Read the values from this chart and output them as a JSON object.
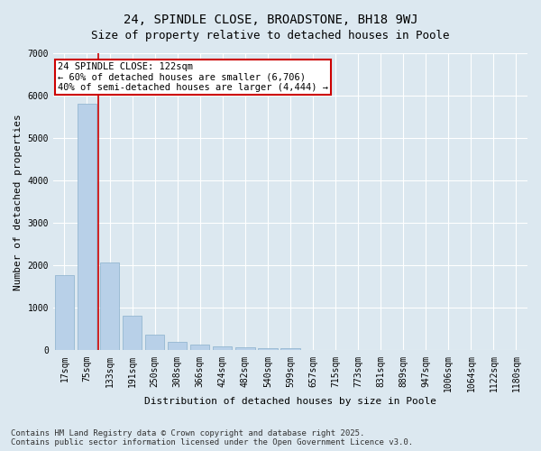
{
  "title": "24, SPINDLE CLOSE, BROADSTONE, BH18 9WJ",
  "subtitle": "Size of property relative to detached houses in Poole",
  "xlabel": "Distribution of detached houses by size in Poole",
  "ylabel": "Number of detached properties",
  "categories": [
    "17sqm",
    "75sqm",
    "133sqm",
    "191sqm",
    "250sqm",
    "308sqm",
    "366sqm",
    "424sqm",
    "482sqm",
    "540sqm",
    "599sqm",
    "657sqm",
    "715sqm",
    "773sqm",
    "831sqm",
    "889sqm",
    "947sqm",
    "1006sqm",
    "1064sqm",
    "1122sqm",
    "1180sqm"
  ],
  "values": [
    1780,
    5820,
    2080,
    820,
    370,
    210,
    130,
    90,
    70,
    55,
    45,
    0,
    0,
    0,
    0,
    0,
    0,
    0,
    0,
    0,
    0
  ],
  "bar_color": "#b8d0e8",
  "bar_edge_color": "#8ab0cc",
  "vline_color": "#cc0000",
  "vline_x": 1.5,
  "annotation_text": "24 SPINDLE CLOSE: 122sqm\n← 60% of detached houses are smaller (6,706)\n40% of semi-detached houses are larger (4,444) →",
  "annotation_box_color": "#ffffff",
  "annotation_box_edge_color": "#cc0000",
  "background_color": "#dce8f0",
  "plot_bg_color": "#dce8f0",
  "footer1": "Contains HM Land Registry data © Crown copyright and database right 2025.",
  "footer2": "Contains public sector information licensed under the Open Government Licence v3.0.",
  "ylim": [
    0,
    7000
  ],
  "yticks": [
    0,
    1000,
    2000,
    3000,
    4000,
    5000,
    6000,
    7000
  ],
  "title_fontsize": 10,
  "subtitle_fontsize": 9,
  "axis_label_fontsize": 8,
  "tick_fontsize": 7,
  "annotation_fontsize": 7.5,
  "footer_fontsize": 6.5
}
